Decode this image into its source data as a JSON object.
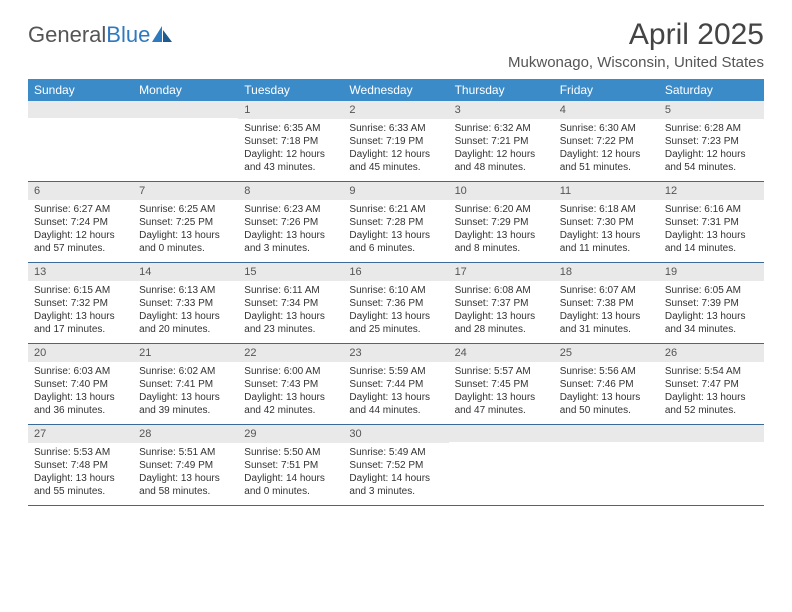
{
  "brand": {
    "part1": "General",
    "part2": "Blue"
  },
  "title": "April 2025",
  "location": "Mukwonago, Wisconsin, United States",
  "colors": {
    "header_bg": "#3b8bc9",
    "header_text": "#ffffff",
    "daynum_bg": "#e9e9e9",
    "week_border": "#3b6a9a",
    "brand_blue": "#2f7abf"
  },
  "day_headers": [
    "Sunday",
    "Monday",
    "Tuesday",
    "Wednesday",
    "Thursday",
    "Friday",
    "Saturday"
  ],
  "weeks": [
    [
      {
        "n": "",
        "sr": "",
        "ss": "",
        "dl1": "",
        "dl2": ""
      },
      {
        "n": "",
        "sr": "",
        "ss": "",
        "dl1": "",
        "dl2": ""
      },
      {
        "n": "1",
        "sr": "Sunrise: 6:35 AM",
        "ss": "Sunset: 7:18 PM",
        "dl1": "Daylight: 12 hours",
        "dl2": "and 43 minutes."
      },
      {
        "n": "2",
        "sr": "Sunrise: 6:33 AM",
        "ss": "Sunset: 7:19 PM",
        "dl1": "Daylight: 12 hours",
        "dl2": "and 45 minutes."
      },
      {
        "n": "3",
        "sr": "Sunrise: 6:32 AM",
        "ss": "Sunset: 7:21 PM",
        "dl1": "Daylight: 12 hours",
        "dl2": "and 48 minutes."
      },
      {
        "n": "4",
        "sr": "Sunrise: 6:30 AM",
        "ss": "Sunset: 7:22 PM",
        "dl1": "Daylight: 12 hours",
        "dl2": "and 51 minutes."
      },
      {
        "n": "5",
        "sr": "Sunrise: 6:28 AM",
        "ss": "Sunset: 7:23 PM",
        "dl1": "Daylight: 12 hours",
        "dl2": "and 54 minutes."
      }
    ],
    [
      {
        "n": "6",
        "sr": "Sunrise: 6:27 AM",
        "ss": "Sunset: 7:24 PM",
        "dl1": "Daylight: 12 hours",
        "dl2": "and 57 minutes."
      },
      {
        "n": "7",
        "sr": "Sunrise: 6:25 AM",
        "ss": "Sunset: 7:25 PM",
        "dl1": "Daylight: 13 hours",
        "dl2": "and 0 minutes."
      },
      {
        "n": "8",
        "sr": "Sunrise: 6:23 AM",
        "ss": "Sunset: 7:26 PM",
        "dl1": "Daylight: 13 hours",
        "dl2": "and 3 minutes."
      },
      {
        "n": "9",
        "sr": "Sunrise: 6:21 AM",
        "ss": "Sunset: 7:28 PM",
        "dl1": "Daylight: 13 hours",
        "dl2": "and 6 minutes."
      },
      {
        "n": "10",
        "sr": "Sunrise: 6:20 AM",
        "ss": "Sunset: 7:29 PM",
        "dl1": "Daylight: 13 hours",
        "dl2": "and 8 minutes."
      },
      {
        "n": "11",
        "sr": "Sunrise: 6:18 AM",
        "ss": "Sunset: 7:30 PM",
        "dl1": "Daylight: 13 hours",
        "dl2": "and 11 minutes."
      },
      {
        "n": "12",
        "sr": "Sunrise: 6:16 AM",
        "ss": "Sunset: 7:31 PM",
        "dl1": "Daylight: 13 hours",
        "dl2": "and 14 minutes."
      }
    ],
    [
      {
        "n": "13",
        "sr": "Sunrise: 6:15 AM",
        "ss": "Sunset: 7:32 PM",
        "dl1": "Daylight: 13 hours",
        "dl2": "and 17 minutes."
      },
      {
        "n": "14",
        "sr": "Sunrise: 6:13 AM",
        "ss": "Sunset: 7:33 PM",
        "dl1": "Daylight: 13 hours",
        "dl2": "and 20 minutes."
      },
      {
        "n": "15",
        "sr": "Sunrise: 6:11 AM",
        "ss": "Sunset: 7:34 PM",
        "dl1": "Daylight: 13 hours",
        "dl2": "and 23 minutes."
      },
      {
        "n": "16",
        "sr": "Sunrise: 6:10 AM",
        "ss": "Sunset: 7:36 PM",
        "dl1": "Daylight: 13 hours",
        "dl2": "and 25 minutes."
      },
      {
        "n": "17",
        "sr": "Sunrise: 6:08 AM",
        "ss": "Sunset: 7:37 PM",
        "dl1": "Daylight: 13 hours",
        "dl2": "and 28 minutes."
      },
      {
        "n": "18",
        "sr": "Sunrise: 6:07 AM",
        "ss": "Sunset: 7:38 PM",
        "dl1": "Daylight: 13 hours",
        "dl2": "and 31 minutes."
      },
      {
        "n": "19",
        "sr": "Sunrise: 6:05 AM",
        "ss": "Sunset: 7:39 PM",
        "dl1": "Daylight: 13 hours",
        "dl2": "and 34 minutes."
      }
    ],
    [
      {
        "n": "20",
        "sr": "Sunrise: 6:03 AM",
        "ss": "Sunset: 7:40 PM",
        "dl1": "Daylight: 13 hours",
        "dl2": "and 36 minutes."
      },
      {
        "n": "21",
        "sr": "Sunrise: 6:02 AM",
        "ss": "Sunset: 7:41 PM",
        "dl1": "Daylight: 13 hours",
        "dl2": "and 39 minutes."
      },
      {
        "n": "22",
        "sr": "Sunrise: 6:00 AM",
        "ss": "Sunset: 7:43 PM",
        "dl1": "Daylight: 13 hours",
        "dl2": "and 42 minutes."
      },
      {
        "n": "23",
        "sr": "Sunrise: 5:59 AM",
        "ss": "Sunset: 7:44 PM",
        "dl1": "Daylight: 13 hours",
        "dl2": "and 44 minutes."
      },
      {
        "n": "24",
        "sr": "Sunrise: 5:57 AM",
        "ss": "Sunset: 7:45 PM",
        "dl1": "Daylight: 13 hours",
        "dl2": "and 47 minutes."
      },
      {
        "n": "25",
        "sr": "Sunrise: 5:56 AM",
        "ss": "Sunset: 7:46 PM",
        "dl1": "Daylight: 13 hours",
        "dl2": "and 50 minutes."
      },
      {
        "n": "26",
        "sr": "Sunrise: 5:54 AM",
        "ss": "Sunset: 7:47 PM",
        "dl1": "Daylight: 13 hours",
        "dl2": "and 52 minutes."
      }
    ],
    [
      {
        "n": "27",
        "sr": "Sunrise: 5:53 AM",
        "ss": "Sunset: 7:48 PM",
        "dl1": "Daylight: 13 hours",
        "dl2": "and 55 minutes."
      },
      {
        "n": "28",
        "sr": "Sunrise: 5:51 AM",
        "ss": "Sunset: 7:49 PM",
        "dl1": "Daylight: 13 hours",
        "dl2": "and 58 minutes."
      },
      {
        "n": "29",
        "sr": "Sunrise: 5:50 AM",
        "ss": "Sunset: 7:51 PM",
        "dl1": "Daylight: 14 hours",
        "dl2": "and 0 minutes."
      },
      {
        "n": "30",
        "sr": "Sunrise: 5:49 AM",
        "ss": "Sunset: 7:52 PM",
        "dl1": "Daylight: 14 hours",
        "dl2": "and 3 minutes."
      },
      {
        "n": "",
        "sr": "",
        "ss": "",
        "dl1": "",
        "dl2": ""
      },
      {
        "n": "",
        "sr": "",
        "ss": "",
        "dl1": "",
        "dl2": ""
      },
      {
        "n": "",
        "sr": "",
        "ss": "",
        "dl1": "",
        "dl2": ""
      }
    ]
  ]
}
